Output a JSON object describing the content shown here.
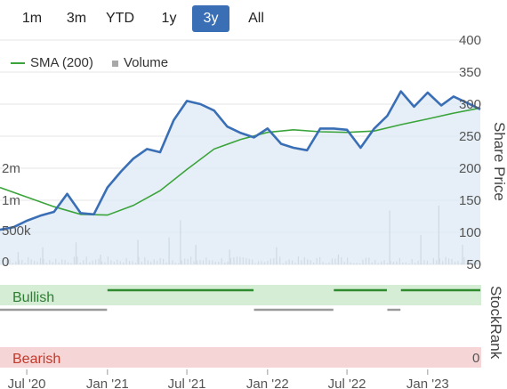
{
  "range_selector": {
    "buttons": [
      {
        "label": "1m",
        "active": false
      },
      {
        "label": "3m",
        "active": false
      },
      {
        "label": "YTD",
        "active": false
      },
      {
        "label": "1y",
        "active": false
      },
      {
        "label": "3y",
        "active": true
      },
      {
        "label": "All",
        "active": false
      }
    ]
  },
  "legend": {
    "sma_label": "SMA (200)",
    "volume_label": "Volume"
  },
  "colors": {
    "price": "#3a6fb5",
    "price_fill": "#dbe8f5",
    "sma": "#3aa43a",
    "volume": "#bdbdbd",
    "bullish_zone": "#d5ecd5",
    "bearish_zone": "#f5d5d5",
    "stockrank_bullish": "#2e8b2e",
    "stockrank_neutral": "#9a9a9a",
    "bullish_text": "#2e7d32",
    "bearish_text": "#c0392b"
  },
  "stockrank": {
    "title": "StockRank",
    "bullish_label": "Bullish",
    "bearish_label": "Bearish",
    "zero_label": "0"
  },
  "chart_data": {
    "type": "line",
    "x_ticks": [
      "Jul '20",
      "Jan '21",
      "Jul '21",
      "Jan '22",
      "Jul '22",
      "Jan '23"
    ],
    "x_domain": [
      "2020-05-01",
      "2023-05-01"
    ],
    "y_right": {
      "label": "Share Price",
      "ticks": [
        50,
        100,
        150,
        200,
        250,
        300,
        350,
        400
      ],
      "ylim": [
        50,
        400
      ]
    },
    "y_left_volume": {
      "ticks": [
        "0",
        "500k",
        "1m",
        "2m"
      ]
    },
    "series": [
      {
        "name": "Share Price",
        "points": [
          [
            "2020-05-01",
            104
          ],
          [
            "2020-06-01",
            108
          ],
          [
            "2020-07-01",
            118
          ],
          [
            "2020-08-01",
            126
          ],
          [
            "2020-09-01",
            132
          ],
          [
            "2020-10-01",
            160
          ],
          [
            "2020-11-01",
            130
          ],
          [
            "2020-12-01",
            128
          ],
          [
            "2021-01-01",
            170
          ],
          [
            "2021-02-01",
            195
          ],
          [
            "2021-03-01",
            215
          ],
          [
            "2021-04-01",
            230
          ],
          [
            "2021-05-01",
            225
          ],
          [
            "2021-06-01",
            275
          ],
          [
            "2021-07-01",
            305
          ],
          [
            "2021-08-01",
            300
          ],
          [
            "2021-09-01",
            290
          ],
          [
            "2021-10-01",
            265
          ],
          [
            "2021-11-01",
            255
          ],
          [
            "2021-12-01",
            248
          ],
          [
            "2022-01-01",
            262
          ],
          [
            "2022-02-01",
            238
          ],
          [
            "2022-03-01",
            232
          ],
          [
            "2022-04-01",
            228
          ],
          [
            "2022-05-01",
            262
          ],
          [
            "2022-06-01",
            262
          ],
          [
            "2022-07-01",
            260
          ],
          [
            "2022-08-01",
            232
          ],
          [
            "2022-09-01",
            262
          ],
          [
            "2022-10-01",
            282
          ],
          [
            "2022-11-01",
            320
          ],
          [
            "2022-12-01",
            296
          ],
          [
            "2023-01-01",
            318
          ],
          [
            "2023-02-01",
            298
          ],
          [
            "2023-03-01",
            312
          ],
          [
            "2023-04-01",
            302
          ],
          [
            "2023-05-01",
            292
          ]
        ]
      },
      {
        "name": "SMA (200)",
        "points": [
          [
            "2020-05-01",
            170
          ],
          [
            "2020-07-01",
            155
          ],
          [
            "2020-09-01",
            140
          ],
          [
            "2020-11-01",
            128
          ],
          [
            "2021-01-01",
            127
          ],
          [
            "2021-03-01",
            142
          ],
          [
            "2021-05-01",
            165
          ],
          [
            "2021-07-01",
            198
          ],
          [
            "2021-09-01",
            230
          ],
          [
            "2021-11-01",
            245
          ],
          [
            "2022-01-01",
            256
          ],
          [
            "2022-03-01",
            260
          ],
          [
            "2022-05-01",
            257
          ],
          [
            "2022-07-01",
            256
          ],
          [
            "2022-09-01",
            258
          ],
          [
            "2022-11-01",
            268
          ],
          [
            "2023-01-01",
            277
          ],
          [
            "2023-03-01",
            286
          ],
          [
            "2023-05-01",
            294
          ]
        ]
      },
      {
        "name": "Volume",
        "volume_spikes": [
          [
            "2020-06-10",
            0.25
          ],
          [
            "2020-08-05",
            0.35
          ],
          [
            "2020-10-20",
            0.45
          ],
          [
            "2020-12-15",
            0.2
          ],
          [
            "2021-03-10",
            0.5
          ],
          [
            "2021-05-20",
            0.55
          ],
          [
            "2021-06-15",
            0.9
          ],
          [
            "2021-07-20",
            0.4
          ],
          [
            "2021-10-05",
            0.3
          ],
          [
            "2022-01-20",
            0.35
          ],
          [
            "2022-06-10",
            0.2
          ],
          [
            "2022-10-05",
            1.1
          ],
          [
            "2022-12-15",
            0.6
          ],
          [
            "2023-01-25",
            1.2
          ],
          [
            "2023-03-20",
            0.4
          ]
        ]
      },
      {
        "name": "StockRank",
        "segments": [
          {
            "from": "2020-05-01",
            "to": "2020-12-31",
            "state": "neutral"
          },
          {
            "from": "2021-01-01",
            "to": "2021-11-30",
            "state": "bullish"
          },
          {
            "from": "2021-12-01",
            "to": "2022-05-31",
            "state": "neutral"
          },
          {
            "from": "2022-06-01",
            "to": "2022-09-30",
            "state": "bullish"
          },
          {
            "from": "2022-10-01",
            "to": "2022-10-31",
            "state": "neutral"
          },
          {
            "from": "2022-11-01",
            "to": "2023-05-01",
            "state": "bullish"
          }
        ]
      }
    ]
  }
}
